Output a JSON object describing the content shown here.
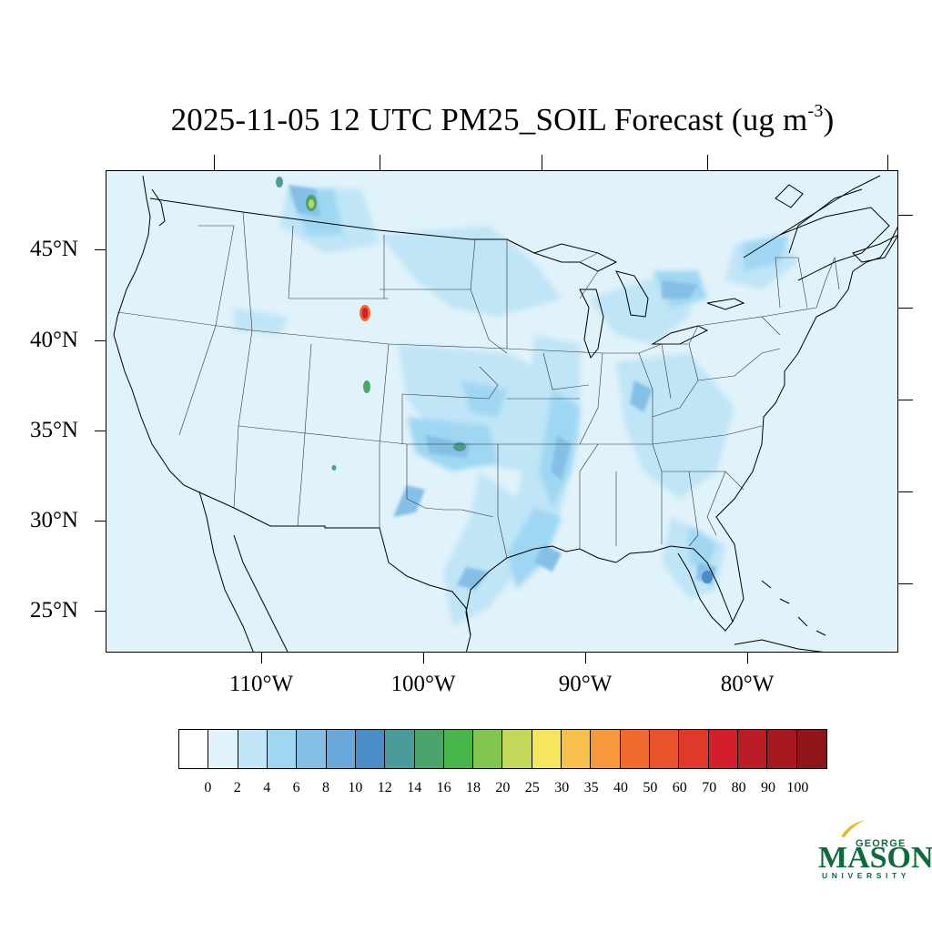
{
  "title": {
    "text": "2025-11-05 12 UTC PM25_SOIL Forecast (ug m",
    "sup": "-3",
    "close": ")"
  },
  "map": {
    "region": "Contiguous United States",
    "background_color": "#e0f2fa",
    "lat_labels": [
      "45°N",
      "40°N",
      "35°N",
      "30°N",
      "25°N"
    ],
    "lon_labels": [
      "110°W",
      "100°W",
      "90°W",
      "80°W"
    ],
    "hotspots": [
      {
        "area": "northwestern Montana",
        "level": "16-20"
      },
      {
        "area": "southeastern Wyoming / western Nebraska",
        "level": "60-80"
      },
      {
        "area": "southeastern Colorado",
        "level": "14-16"
      },
      {
        "area": "central Oklahoma",
        "level": "12-16"
      },
      {
        "area": "lower Mississippi valley",
        "level": "8-12"
      },
      {
        "area": "Louisiana coast",
        "level": "8-12"
      },
      {
        "area": "southern Texas",
        "level": "8-12"
      },
      {
        "area": "central Florida",
        "level": "8-12"
      },
      {
        "area": "lower Great Lakes",
        "level": "6-10"
      }
    ]
  },
  "colorbar": {
    "colors": [
      "#ffffff",
      "#e0f2fa",
      "#bfe5f7",
      "#9fd7f3",
      "#84bfe5",
      "#68a8da",
      "#4a8bc8",
      "#4a9b9a",
      "#4aa56c",
      "#46b64a",
      "#83c64f",
      "#c3d75b",
      "#f5e65e",
      "#f7bf4b",
      "#f6983c",
      "#f16b2f",
      "#e9532c",
      "#df3a29",
      "#d21f2b",
      "#bb1b24",
      "#a8181f",
      "#90151a"
    ],
    "labels": [
      "0",
      "2",
      "4",
      "6",
      "8",
      "10",
      "12",
      "14",
      "16",
      "18",
      "20",
      "25",
      "30",
      "35",
      "40",
      "50",
      "60",
      "70",
      "80",
      "90",
      "100"
    ]
  },
  "logo": {
    "line1": "GEORGE",
    "line2": "MASON",
    "line3": "UNIVERSITY",
    "color": "#0b6b3a",
    "accent": "#e8b923"
  }
}
